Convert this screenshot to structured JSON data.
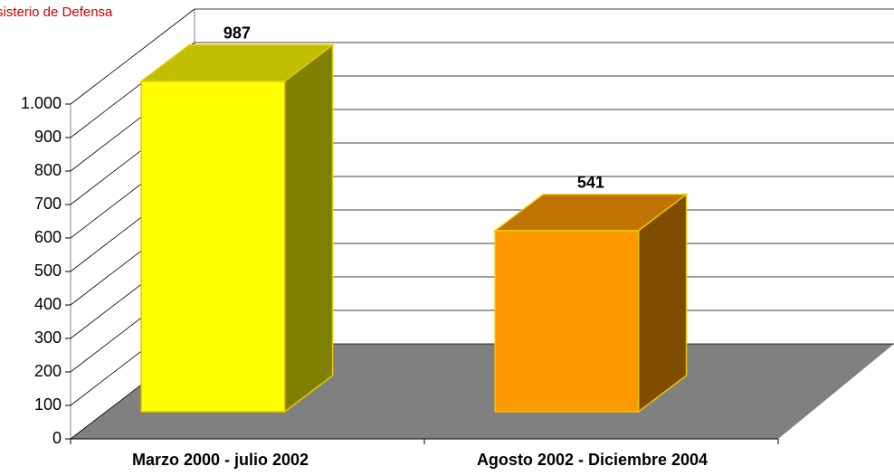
{
  "chart_data": {
    "type": "bar3d",
    "source": "sisterio de Defensa",
    "categories": [
      "Marzo 2000 - julio 2002",
      "Agosto 2002 - Diciembre 2004"
    ],
    "values": [
      987,
      541
    ],
    "colors": [
      "#ffff00",
      "#ff9900"
    ],
    "ylim": [
      0,
      1000
    ],
    "yticks": [
      0,
      100,
      200,
      300,
      400,
      500,
      600,
      700,
      800,
      900,
      {
        "value": 1000,
        "label": "1.000"
      }
    ],
    "grid": true
  }
}
